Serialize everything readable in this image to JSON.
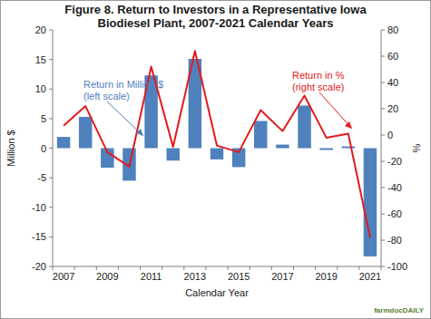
{
  "chart_data": {
    "type": "bar",
    "title": "Figure 8. Return to Investors in a Representative Iowa Biodiesel Plant, 2007-2021 Calendar Years",
    "xlabel": "Calendar Year",
    "ylabel": "Million $",
    "y2label": "%",
    "categories": [
      "2007",
      null,
      "2009",
      null,
      "2011",
      null,
      "2013",
      null,
      "2015",
      null,
      "2017",
      null,
      "2019",
      null,
      "2021"
    ],
    "series": [
      {
        "name": "Return in Million $ (left scale)",
        "type": "bar",
        "color": "#4f81bd",
        "values": [
          1.9,
          5.3,
          -3.3,
          -5.5,
          12.3,
          -2.1,
          15.1,
          -1.9,
          -3.2,
          4.6,
          0.6,
          7.2,
          -0.3,
          0.3,
          -18.3
        ]
      },
      {
        "name": "Return in % (right scale)",
        "type": "line",
        "axis": "y2",
        "color": "#e31a1c",
        "values": [
          7,
          22,
          -13,
          -24,
          52,
          -9,
          64,
          -8,
          -13,
          19,
          3,
          30,
          -2,
          1,
          -78
        ]
      }
    ],
    "ylim": [
      -20,
      20
    ],
    "yticks": [
      -20,
      -15,
      -10,
      -5,
      0,
      5,
      10,
      15,
      20
    ],
    "y2lim": [
      -100,
      80
    ],
    "y2ticks": [
      -100,
      -80,
      -60,
      -40,
      -20,
      0,
      20,
      40,
      60,
      80
    ],
    "grid": false,
    "watermark": "farmdocDAILY"
  }
}
